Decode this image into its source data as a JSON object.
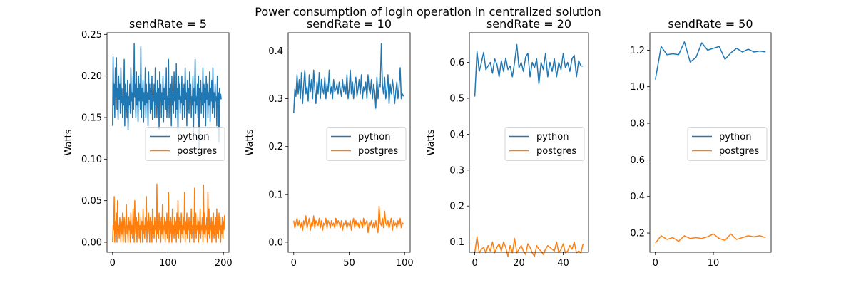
{
  "chart_data": {
    "suptitle": "Power consumption of login operation in centralized solution",
    "legend_position": "center-right",
    "series_colors": {
      "python": "#1f77b4",
      "postgres": "#ff7f0e"
    },
    "panels": [
      {
        "type": "line",
        "title": "sendRate = 5",
        "ylabel": "Watts",
        "xlim": [
          -10,
          210
        ],
        "ylim": [
          -0.012,
          0.252
        ],
        "xticks": [
          0,
          100,
          200
        ],
        "yticks": [
          0.0,
          0.05,
          0.1,
          0.15,
          0.2,
          0.25
        ],
        "ytick_labels": [
          "0.00",
          "0.05",
          "0.10",
          "0.15",
          "0.20",
          "0.25"
        ],
        "legend": [
          "python",
          "postgres"
        ],
        "x_start": 0,
        "x_step": 1,
        "series": [
          {
            "name": "python",
            "values": [
              0.14,
              0.223,
              0.165,
              0.19,
              0.15,
              0.21,
              0.175,
              0.222,
              0.16,
              0.185,
              0.148,
              0.2,
              0.172,
              0.19,
              0.155,
              0.21,
              0.168,
              0.185,
              0.15,
              0.175,
              0.165,
              0.22,
              0.14,
              0.19,
              0.16,
              0.18,
              0.15,
              0.195,
              0.135,
              0.175,
              0.165,
              0.19,
              0.155,
              0.21,
              0.17,
              0.18,
              0.15,
              0.2,
              0.16,
              0.239,
              0.175,
              0.19,
              0.15,
              0.205,
              0.165,
              0.185,
              0.145,
              0.2,
              0.17,
              0.19,
              0.16,
              0.235,
              0.15,
              0.185,
              0.17,
              0.195,
              0.145,
              0.18,
              0.165,
              0.21,
              0.15,
              0.19,
              0.168,
              0.18,
              0.14,
              0.205,
              0.172,
              0.19,
              0.155,
              0.185,
              0.16,
              0.2,
              0.148,
              0.175,
              0.17,
              0.19,
              0.15,
              0.21,
              0.165,
              0.18,
              0.15,
              0.195,
              0.162,
              0.185,
              0.135,
              0.205,
              0.17,
              0.19,
              0.15,
              0.18,
              0.165,
              0.2,
              0.145,
              0.185,
              0.172,
              0.19,
              0.16,
              0.21,
              0.15,
              0.175,
              0.165,
              0.22,
              0.15,
              0.185,
              0.17,
              0.19,
              0.14,
              0.2,
              0.165,
              0.18,
              0.155,
              0.205,
              0.17,
              0.19,
              0.15,
              0.215,
              0.16,
              0.185,
              0.13,
              0.2,
              0.172,
              0.19,
              0.155,
              0.175,
              0.168,
              0.2,
              0.148,
              0.185,
              0.165,
              0.19,
              0.15,
              0.21,
              0.172,
              0.18,
              0.14,
              0.195,
              0.16,
              0.185,
              0.155,
              0.205,
              0.17,
              0.19,
              0.15,
              0.175,
              0.165,
              0.2,
              0.13,
              0.185,
              0.17,
              0.22,
              0.155,
              0.175,
              0.165,
              0.19,
              0.15,
              0.2,
              0.113,
              0.185,
              0.172,
              0.195,
              0.155,
              0.18,
              0.165,
              0.21,
              0.15,
              0.19,
              0.168,
              0.185,
              0.14,
              0.2,
              0.172,
              0.19,
              0.15,
              0.18,
              0.165,
              0.205,
              0.145,
              0.185,
              0.17,
              0.195,
              0.155,
              0.21,
              0.162,
              0.18,
              0.15,
              0.19,
              0.17,
              0.175,
              0.14,
              0.2,
              0.165,
              0.18,
              0.12,
              0.185,
              0.172,
              0.178,
              0.172
            ]
          },
          {
            "name": "postgres",
            "values": [
              0.0,
              0.02,
              0.015,
              0.055,
              0.0,
              0.025,
              0.01,
              0.035,
              0.0,
              0.05,
              0.015,
              0.02,
              0.005,
              0.03,
              0.02,
              0.0,
              0.025,
              0.01,
              0.035,
              0.0,
              0.02,
              0.03,
              0.015,
              0.0,
              0.025,
              0.045,
              0.01,
              0.02,
              0.0,
              0.03,
              0.015,
              0.025,
              0.0,
              0.035,
              0.01,
              0.02,
              0.005,
              0.04,
              0.015,
              0.0,
              0.05,
              0.02,
              0.01,
              0.03,
              0.0,
              0.025,
              0.015,
              0.035,
              0.005,
              0.02,
              0.0,
              0.03,
              0.015,
              0.025,
              0.0,
              0.04,
              0.01,
              0.02,
              0.005,
              0.03,
              0.015,
              0.055,
              0.0,
              0.025,
              0.01,
              0.035,
              0.02,
              0.0,
              0.03,
              0.015,
              0.025,
              0.0,
              0.04,
              0.01,
              0.02,
              0.005,
              0.03,
              0.015,
              0.025,
              0.0,
              0.07,
              0.01,
              0.02,
              0.005,
              0.035,
              0.015,
              0.025,
              0.0,
              0.03,
              0.01,
              0.045,
              0.005,
              0.02,
              0.015,
              0.03,
              0.0,
              0.025,
              0.01,
              0.035,
              0.005,
              0.02,
              0.06,
              0.0,
              0.025,
              0.01,
              0.03,
              0.015,
              0.0,
              0.04,
              0.01,
              0.02,
              0.005,
              0.03,
              0.015,
              0.025,
              0.0,
              0.035,
              0.01,
              0.05,
              0.005,
              0.03,
              0.015,
              0.025,
              0.0,
              0.035,
              0.01,
              0.02,
              0.005,
              0.03,
              0.015,
              0.06,
              0.0,
              0.025,
              0.01,
              0.035,
              0.005,
              0.02,
              0.015,
              0.03,
              0.0,
              0.025,
              0.01,
              0.04,
              0.005,
              0.02,
              0.015,
              0.03,
              0.0,
              0.065,
              0.01,
              0.035,
              0.005,
              0.02,
              0.015,
              0.03,
              0.0,
              0.025,
              0.01,
              0.04,
              0.005,
              0.02,
              0.015,
              0.03,
              0.0,
              0.069,
              0.01,
              0.035,
              0.005,
              0.02,
              0.015,
              0.03,
              0.0,
              0.06,
              0.01,
              0.04,
              0.005,
              0.02,
              0.015,
              0.03,
              0.0,
              0.025,
              0.01,
              0.035,
              0.005,
              0.02,
              0.015,
              0.03,
              0.0,
              0.04,
              0.01,
              0.025,
              0.005,
              0.035,
              0.015,
              0.03,
              0.0,
              0.02,
              0.01,
              0.03,
              0.005,
              0.025,
              0.015,
              0.032,
              0.03
            ]
          }
        ]
      },
      {
        "type": "line",
        "title": "sendRate = 10",
        "ylabel": "Watts",
        "xlim": [
          -5,
          105
        ],
        "ylim": [
          -0.021,
          0.438
        ],
        "xticks": [
          0,
          50,
          100
        ],
        "yticks": [
          0.0,
          0.1,
          0.2,
          0.3,
          0.4
        ],
        "ytick_labels": [
          "0.0",
          "0.1",
          "0.2",
          "0.3",
          "0.4"
        ],
        "legend": [
          "python",
          "postgres"
        ],
        "x_start": 0,
        "x_step": 1,
        "series": [
          {
            "name": "python",
            "values": [
              0.27,
              0.32,
              0.305,
              0.35,
              0.31,
              0.34,
              0.3,
              0.355,
              0.29,
              0.33,
              0.36,
              0.31,
              0.325,
              0.295,
              0.35,
              0.315,
              0.34,
              0.3,
              0.36,
              0.32,
              0.29,
              0.335,
              0.31,
              0.355,
              0.3,
              0.34,
              0.32,
              0.31,
              0.345,
              0.3,
              0.33,
              0.315,
              0.36,
              0.31,
              0.325,
              0.3,
              0.34,
              0.315,
              0.32,
              0.33,
              0.31,
              0.335,
              0.32,
              0.305,
              0.34,
              0.315,
              0.33,
              0.31,
              0.35,
              0.3,
              0.32,
              0.36,
              0.31,
              0.335,
              0.3,
              0.33,
              0.345,
              0.305,
              0.32,
              0.34,
              0.31,
              0.35,
              0.3,
              0.325,
              0.315,
              0.335,
              0.3,
              0.35,
              0.32,
              0.31,
              0.34,
              0.3,
              0.33,
              0.315,
              0.28,
              0.345,
              0.3,
              0.33,
              0.325,
              0.415,
              0.33,
              0.31,
              0.345,
              0.3,
              0.32,
              0.35,
              0.29,
              0.33,
              0.31,
              0.34,
              0.32,
              0.29,
              0.315,
              0.335,
              0.3,
              0.325,
              0.365,
              0.3,
              0.31,
              0.305
            ]
          },
          {
            "name": "postgres",
            "values": [
              0.045,
              0.03,
              0.04,
              0.05,
              0.035,
              0.045,
              0.03,
              0.04,
              0.025,
              0.045,
              0.035,
              0.055,
              0.03,
              0.04,
              0.05,
              0.025,
              0.04,
              0.035,
              0.055,
              0.03,
              0.045,
              0.04,
              0.035,
              0.05,
              0.03,
              0.045,
              0.025,
              0.04,
              0.035,
              0.05,
              0.03,
              0.045,
              0.04,
              0.03,
              0.045,
              0.035,
              0.04,
              0.03,
              0.05,
              0.035,
              0.045,
              0.04,
              0.03,
              0.045,
              0.025,
              0.04,
              0.035,
              0.045,
              0.03,
              0.04,
              0.035,
              0.045,
              0.025,
              0.04,
              0.05,
              0.03,
              0.045,
              0.035,
              0.04,
              0.03,
              0.045,
              0.04,
              0.03,
              0.05,
              0.035,
              0.04,
              0.045,
              0.02,
              0.04,
              0.035,
              0.045,
              0.03,
              0.04,
              0.03,
              0.045,
              0.03,
              0.02,
              0.075,
              0.04,
              0.035,
              0.05,
              0.03,
              0.065,
              0.04,
              0.035,
              0.045,
              0.03,
              0.04,
              0.05,
              0.025,
              0.045,
              0.035,
              0.04,
              0.03,
              0.045,
              0.035,
              0.05,
              0.03,
              0.04,
              0.038
            ]
          }
        ]
      },
      {
        "type": "line",
        "title": "sendRate = 20",
        "ylabel": "Watts",
        "xlim": [
          -2.45,
          51.45
        ],
        "ylim": [
          0.0715,
          0.6825
        ],
        "xticks": [
          0,
          20,
          40
        ],
        "yticks": [
          0.1,
          0.2,
          0.3,
          0.4,
          0.5,
          0.6
        ],
        "ytick_labels": [
          "0.1",
          "0.2",
          "0.3",
          "0.4",
          "0.5",
          "0.6"
        ],
        "legend": [
          "python",
          "postgres"
        ],
        "x_start": 0,
        "x_step": 1,
        "series": [
          {
            "name": "python",
            "values": [
              0.505,
              0.63,
              0.575,
              0.6,
              0.628,
              0.58,
              0.59,
              0.6,
              0.57,
              0.61,
              0.595,
              0.56,
              0.605,
              0.575,
              0.612,
              0.58,
              0.59,
              0.56,
              0.6,
              0.65,
              0.585,
              0.6,
              0.575,
              0.615,
              0.625,
              0.56,
              0.6,
              0.585,
              0.61,
              0.54,
              0.6,
              0.58,
              0.625,
              0.56,
              0.6,
              0.575,
              0.61,
              0.56,
              0.6,
              0.58,
              0.625,
              0.585,
              0.6,
              0.575,
              0.61,
              0.62,
              0.56,
              0.605,
              0.59,
              0.59
            ]
          },
          {
            "name": "postgres",
            "values": [
              0.07,
              0.115,
              0.07,
              0.08,
              0.085,
              0.07,
              0.09,
              0.075,
              0.1,
              0.07,
              0.085,
              0.095,
              0.075,
              0.1,
              0.085,
              0.06,
              0.09,
              0.07,
              0.11,
              0.07,
              0.08,
              0.09,
              0.075,
              0.065,
              0.095,
              0.085,
              0.07,
              0.06,
              0.09,
              0.08,
              0.075,
              0.065,
              0.08,
              0.09,
              0.085,
              0.08,
              0.075,
              0.1,
              0.07,
              0.08,
              0.095,
              0.07,
              0.075,
              0.09,
              0.08,
              0.1,
              0.07,
              0.075,
              0.07,
              0.095
            ]
          }
        ]
      },
      {
        "type": "line",
        "title": "sendRate = 50",
        "ylabel": "",
        "xlim": [
          -0.95,
          19.95
        ],
        "ylim": [
          0.095,
          1.295
        ],
        "xticks": [
          0,
          10
        ],
        "yticks": [
          0.2,
          0.4,
          0.6,
          0.8,
          1.0,
          1.2
        ],
        "ytick_labels": [
          "0.2",
          "0.4",
          "0.6",
          "0.8",
          "1.0",
          "1.2"
        ],
        "legend": [
          "python",
          "postgres"
        ],
        "x_start": 0,
        "x_step": 1,
        "series": [
          {
            "name": "python",
            "values": [
              1.04,
              1.22,
              1.175,
              1.18,
              1.175,
              1.245,
              1.135,
              1.16,
              1.24,
              1.2,
              1.21,
              1.22,
              1.15,
              1.185,
              1.21,
              1.19,
              1.205,
              1.19,
              1.195,
              1.19
            ]
          },
          {
            "name": "postgres",
            "values": [
              0.145,
              0.185,
              0.165,
              0.175,
              0.155,
              0.185,
              0.17,
              0.175,
              0.17,
              0.18,
              0.195,
              0.17,
              0.16,
              0.195,
              0.165,
              0.175,
              0.185,
              0.18,
              0.185,
              0.175
            ]
          }
        ]
      }
    ]
  }
}
